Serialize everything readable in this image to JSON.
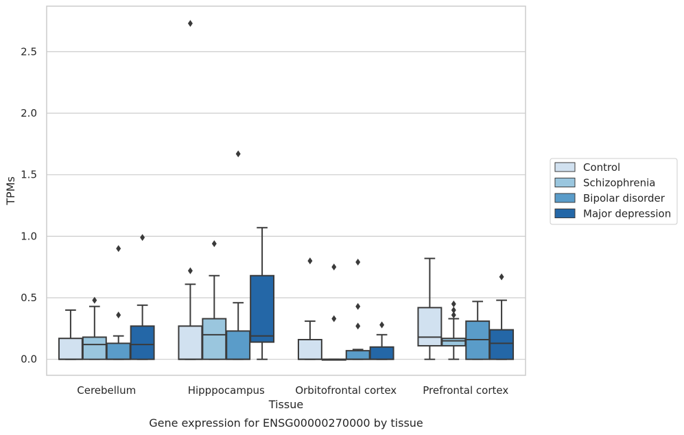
{
  "chart_data": {
    "type": "box",
    "caption": "Gene expression for ENSG00000270000 by tissue",
    "xlabel": "Tissue",
    "ylabel": "TPMs",
    "ylim": [
      -0.13,
      2.87
    ],
    "yticks": [
      "0.0",
      "0.5",
      "1.0",
      "1.5",
      "2.0",
      "2.5"
    ],
    "ytick_values": [
      0,
      0.5,
      1.0,
      1.5,
      2.0,
      2.5
    ],
    "grid": true,
    "legend_position": "right",
    "categories": [
      "Cerebellum",
      "Hipppocampus",
      "Orbitofrontal cortex",
      "Prefrontal cortex"
    ],
    "series": [
      {
        "name": "Control",
        "color": "#d1e1f0",
        "boxes": [
          {
            "min": 0,
            "q1": 0,
            "median": 0,
            "q3": 0.17,
            "max": 0.4,
            "outliers": []
          },
          {
            "min": 0,
            "q1": 0,
            "median": 0,
            "q3": 0.27,
            "max": 0.61,
            "outliers": [
              0.72,
              2.73
            ]
          },
          {
            "min": 0,
            "q1": 0,
            "median": 0,
            "q3": 0.16,
            "max": 0.31,
            "outliers": [
              0.8
            ]
          },
          {
            "min": 0,
            "q1": 0.11,
            "median": 0.18,
            "q3": 0.42,
            "max": 0.82,
            "outliers": []
          }
        ]
      },
      {
        "name": "Schizophrenia",
        "color": "#9ac6de",
        "boxes": [
          {
            "min": 0,
            "q1": 0,
            "median": 0.12,
            "q3": 0.18,
            "max": 0.43,
            "outliers": [
              0.48
            ]
          },
          {
            "min": 0,
            "q1": 0,
            "median": 0.2,
            "q3": 0.33,
            "max": 0.68,
            "outliers": [
              0.94
            ]
          },
          {
            "min": 0,
            "q1": 0,
            "median": 0,
            "q3": 0,
            "max": 0,
            "outliers": [
              0.33,
              0.75
            ]
          },
          {
            "min": 0,
            "q1": 0.11,
            "median": 0.15,
            "q3": 0.17,
            "max": 0.33,
            "outliers": [
              0.36,
              0.4,
              0.45
            ]
          }
        ]
      },
      {
        "name": "Bipolar disorder",
        "color": "#5a9cc9",
        "boxes": [
          {
            "min": 0,
            "q1": 0,
            "median": 0,
            "q3": 0.13,
            "max": 0.19,
            "outliers": [
              0.36,
              0.9
            ]
          },
          {
            "min": 0,
            "q1": 0,
            "median": 0,
            "q3": 0.23,
            "max": 0.46,
            "outliers": [
              1.67
            ]
          },
          {
            "min": 0,
            "q1": 0,
            "median": 0,
            "q3": 0.07,
            "max": 0.08,
            "outliers": [
              0.27,
              0.43,
              0.79
            ]
          },
          {
            "min": 0,
            "q1": 0,
            "median": 0.16,
            "q3": 0.31,
            "max": 0.47,
            "outliers": []
          }
        ]
      },
      {
        "name": "Major depression",
        "color": "#2467a7",
        "boxes": [
          {
            "min": 0,
            "q1": 0,
            "median": 0.12,
            "q3": 0.27,
            "max": 0.44,
            "outliers": [
              0.99
            ]
          },
          {
            "min": 0,
            "q1": 0.14,
            "median": 0.19,
            "q3": 0.68,
            "max": 1.07,
            "outliers": []
          },
          {
            "min": 0,
            "q1": 0,
            "median": 0,
            "q3": 0.1,
            "max": 0.2,
            "outliers": [
              0.28
            ]
          },
          {
            "min": 0,
            "q1": 0,
            "median": 0.13,
            "q3": 0.24,
            "max": 0.48,
            "outliers": [
              0.67
            ]
          }
        ]
      }
    ]
  }
}
